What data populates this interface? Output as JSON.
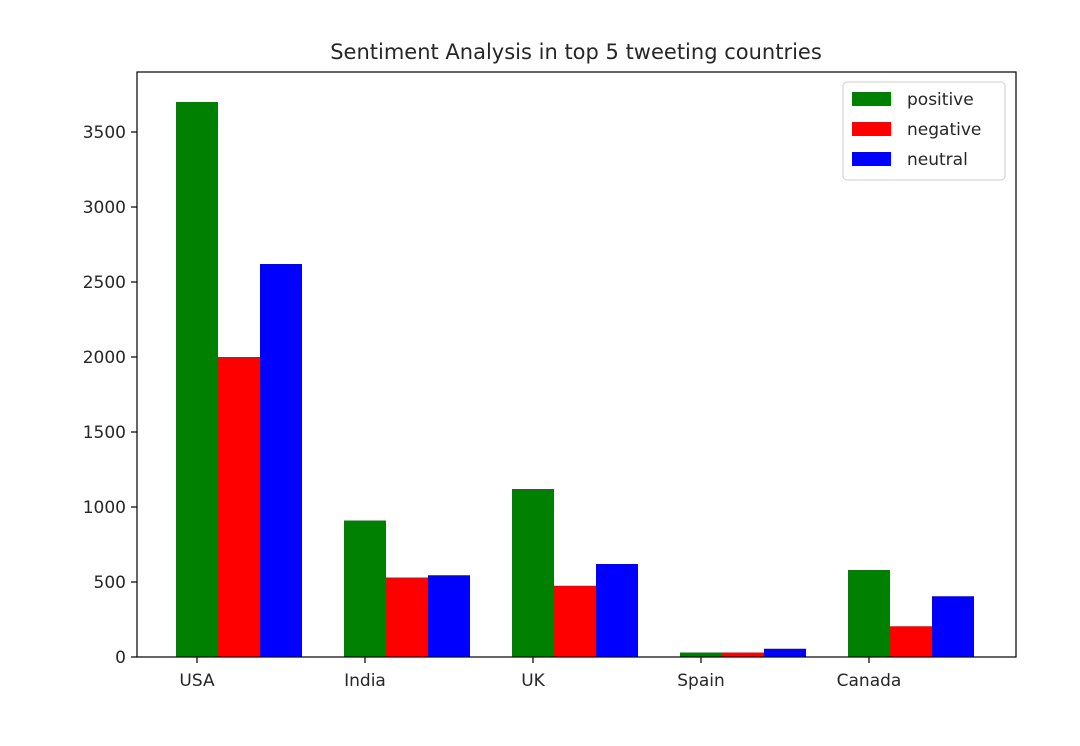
{
  "chart_data": {
    "type": "bar",
    "title": "Sentiment Analysis in top 5 tweeting countries",
    "xlabel": "",
    "ylabel": "",
    "categories": [
      "USA",
      "India",
      "UK",
      "Spain",
      "Canada"
    ],
    "series": [
      {
        "name": "positive",
        "color": "#008000",
        "values": [
          3700,
          910,
          1120,
          30,
          580
        ]
      },
      {
        "name": "negative",
        "color": "#ff0000",
        "values": [
          2000,
          530,
          475,
          30,
          205
        ]
      },
      {
        "name": "neutral",
        "color": "#0000ff",
        "values": [
          2620,
          545,
          620,
          55,
          405
        ]
      }
    ],
    "ylim": [
      0,
      3900
    ],
    "yticks": [
      0,
      500,
      1000,
      1500,
      2000,
      2500,
      3000,
      3500
    ],
    "grid": false,
    "legend_position": "top-right"
  }
}
